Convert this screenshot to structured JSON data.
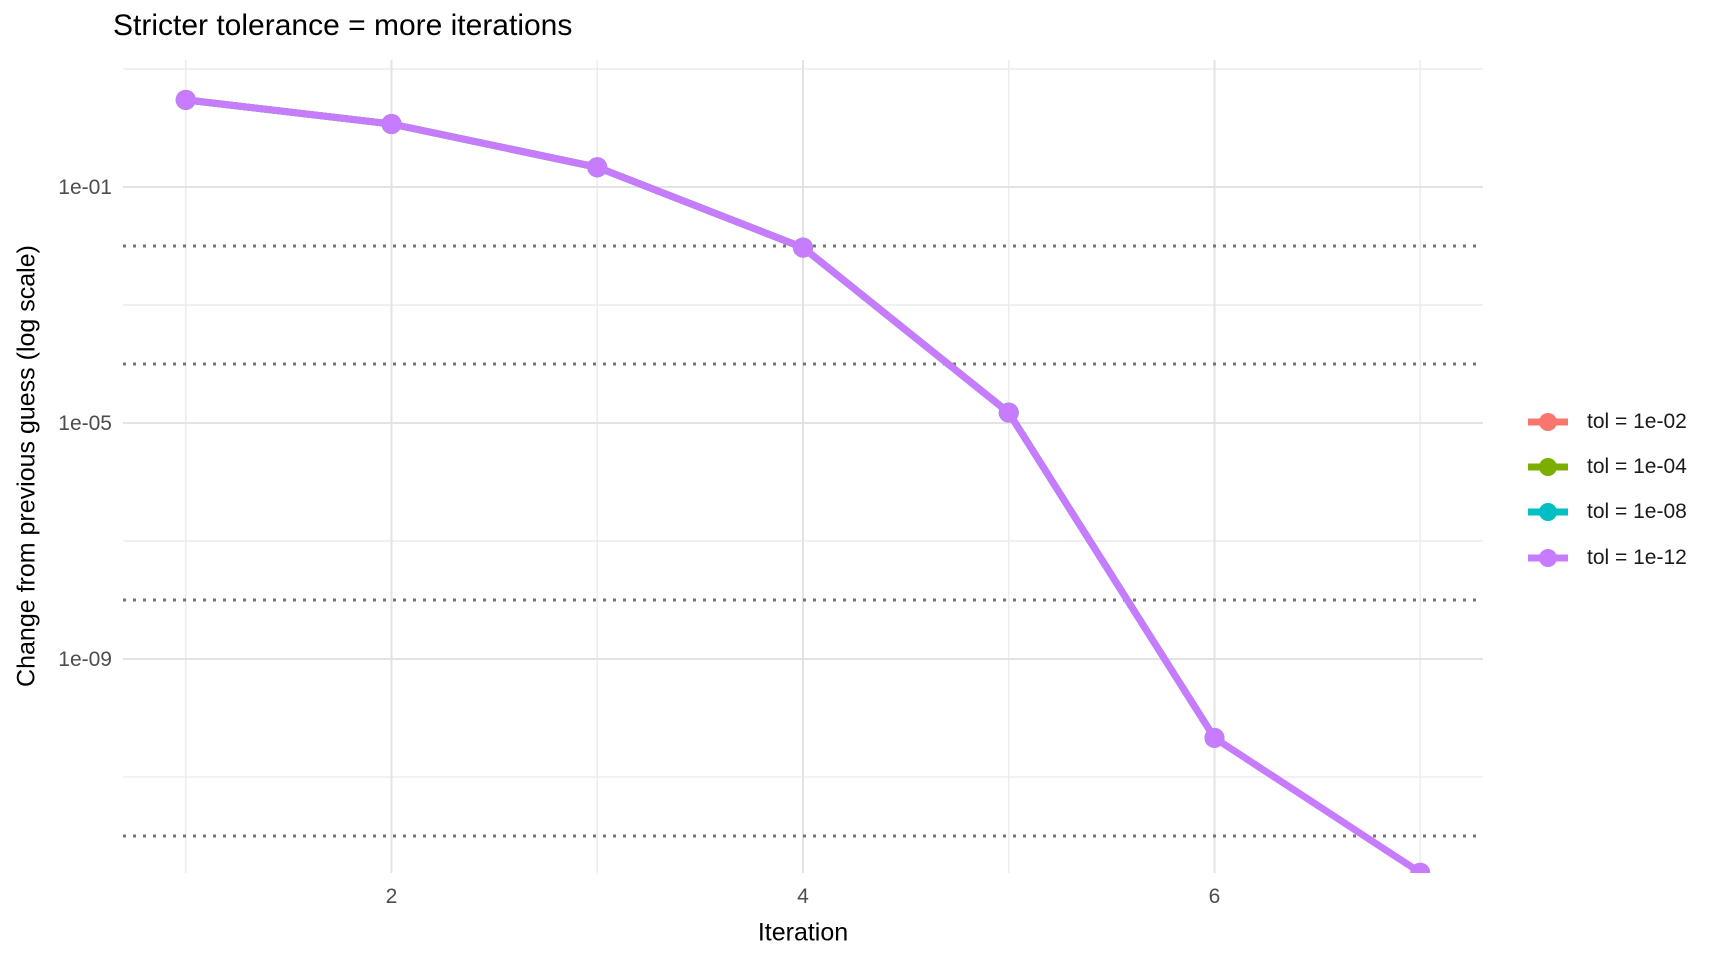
{
  "chart_data": {
    "type": "line",
    "title": "Stricter tolerance = more iterations",
    "xlabel": "Iteration",
    "ylabel": "Change from previous guess (log scale)",
    "y_scale": "log10",
    "x_ticks": [
      2,
      4,
      6
    ],
    "x_minor_gridlines": [
      1,
      3,
      5,
      7
    ],
    "y_ticks": [
      {
        "label": "1e-01",
        "value": 0.1
      },
      {
        "label": "1e-05",
        "value": 1e-05
      },
      {
        "label": "1e-09",
        "value": 1e-09
      }
    ],
    "y_minor_gridlines": [
      10.0,
      0.001,
      1e-07,
      1e-11
    ],
    "xlim": [
      0.695,
      7.305
    ],
    "ylim_log10": [
      1.153,
      -12.627
    ],
    "grid": true,
    "tolerance_guides": [
      0.01,
      0.0001,
      1e-08,
      1e-12
    ],
    "series": [
      {
        "name": "tol = 1e-02",
        "color": "#F8766D",
        "x": [
          1,
          2,
          3,
          4
        ],
        "y": [
          3.0,
          1.17,
          0.216,
          0.0094
        ]
      },
      {
        "name": "tol = 1e-04",
        "color": "#7CAE00",
        "x": [
          1,
          2,
          3,
          4,
          5
        ],
        "y": [
          3.0,
          1.17,
          0.216,
          0.0094,
          1.5e-05
        ]
      },
      {
        "name": "tol = 1e-08",
        "color": "#00BFC4",
        "x": [
          1,
          2,
          3,
          4,
          5,
          6
        ],
        "y": [
          3.0,
          1.17,
          0.216,
          0.0094,
          1.5e-05,
          4.6e-11
        ]
      },
      {
        "name": "tol = 1e-12",
        "color": "#C77CFF",
        "x": [
          1,
          2,
          3,
          4,
          5,
          6,
          7
        ],
        "y": [
          3.0,
          1.17,
          0.216,
          0.0094,
          1.5e-05,
          4.6e-11,
          2.4e-13
        ]
      }
    ],
    "legend": {
      "position": "right",
      "entries": [
        {
          "label": "tol = 1e-02",
          "color": "#F8766D"
        },
        {
          "label": "tol = 1e-04",
          "color": "#7CAE00"
        },
        {
          "label": "tol = 1e-08",
          "color": "#00BFC4"
        },
        {
          "label": "tol = 1e-12",
          "color": "#C77CFF"
        }
      ]
    },
    "style_colors": {
      "background": "#ffffff",
      "grid_major": "#e3e3e3",
      "grid_minor": "#ededed",
      "tolerance_guide": "#757575",
      "tick_label": "#4d4d4d",
      "text": "#000000"
    }
  }
}
